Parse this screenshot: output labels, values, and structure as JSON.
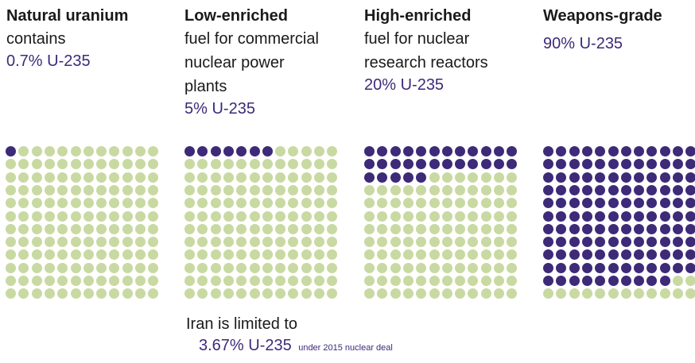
{
  "colors": {
    "u235": "#3d2a78",
    "u238": "#c9d9a2",
    "text": "#1a1a1a"
  },
  "columns": [
    {
      "title": "Natural uranium",
      "description": "contains",
      "value_label": "0.7% U-235"
    },
    {
      "title": "Low-enriched",
      "description": "fuel for commercial\nnuclear power\nplants",
      "value_label": "5% U-235"
    },
    {
      "title": "High-enriched",
      "description": "fuel for nuclear\nresearch reactors",
      "value_label": "20% U-235"
    },
    {
      "title": "Weapons-grade",
      "description": "",
      "value_label": "90% U-235"
    }
  ],
  "footer": {
    "line1": "Iran is limited to",
    "value": "3.67% U-235",
    "note": "under 2015 nuclear deal"
  },
  "chart_data": {
    "type": "waffle",
    "grid": {
      "rows": 12,
      "cols": 12,
      "total": 144
    },
    "categories": [
      "Natural uranium",
      "Low-enriched",
      "High-enriched",
      "Weapons-grade"
    ],
    "values": [
      0.7,
      5,
      20,
      90
    ],
    "unit": "% U-235",
    "highlighted_dots": [
      1,
      7,
      29,
      130
    ]
  }
}
